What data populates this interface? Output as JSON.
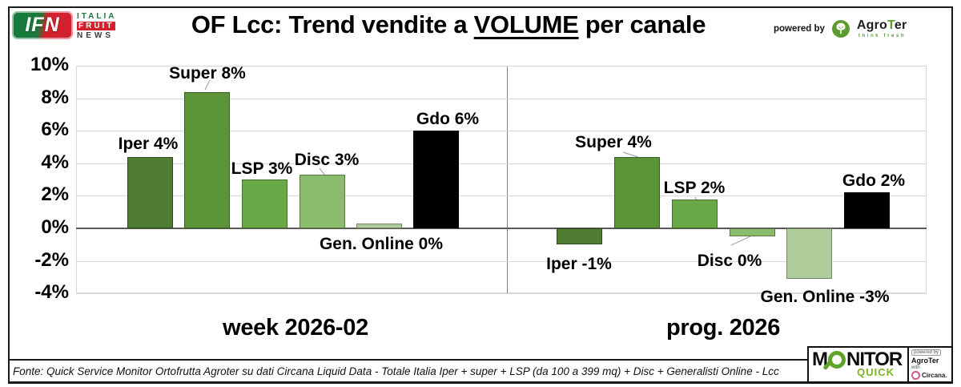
{
  "header": {
    "ifn_logo": {
      "acronym": "IFN",
      "line1": "ITALIA",
      "line2": "FRUIT",
      "line3": "NEWS"
    },
    "title": {
      "prefix": "OF Lcc: Trend vendite a ",
      "underlined": "VOLUME",
      "suffix": " per canale"
    },
    "powered_by": {
      "label": "powered by",
      "brand_part1": "Agro",
      "brand_part2": "T",
      "brand_part3": "er",
      "tagline": "think fresh"
    }
  },
  "axis": {
    "tick_labels": [
      "10%",
      "8%",
      "6%",
      "4%",
      "2%",
      "0%",
      "-2%",
      "-4%"
    ],
    "ymax": 10,
    "ymin": -4,
    "step": 2
  },
  "chart_data": [
    {
      "type": "bar",
      "group_label": "week 2026-02",
      "categories": [
        "Iper",
        "Super",
        "LSP",
        "Disc",
        "Gen. Online",
        "Gdo"
      ],
      "values": [
        4.4,
        8.4,
        3.0,
        3.3,
        0.3,
        6.0
      ],
      "bar_labels": [
        "Iper 4%",
        "Super 8%",
        "LSP 3%",
        "Disc 3%",
        "Gen. Online 0%",
        "Gdo 6%"
      ],
      "bar_colors": [
        "#4e7d33",
        "#5b9339",
        "#6aa847",
        "#8bbc6d",
        "#aecb9a",
        "#000000"
      ],
      "bar_border_colors": [
        "#2d4a1c",
        "#3a5e24",
        "#44702c",
        "#5a7444",
        "#75856a",
        "#000000"
      ],
      "ylim": [
        -4,
        10
      ],
      "grid": true,
      "legend": "none"
    },
    {
      "type": "bar",
      "group_label": "prog. 2026",
      "categories": [
        "Iper",
        "Super",
        "LSP",
        "Disc",
        "Gen. Online",
        "Gdo"
      ],
      "values": [
        -1.0,
        4.4,
        1.8,
        -0.5,
        -3.1,
        2.2
      ],
      "bar_labels": [
        "Iper -1%",
        "Super 4%",
        "LSP 2%",
        "Disc 0%",
        "Gen. Online -3%",
        "Gdo 2%"
      ],
      "bar_colors": [
        "#4e7d33",
        "#5b9339",
        "#6aa847",
        "#8bbc6d",
        "#aecb9a",
        "#000000"
      ],
      "bar_border_colors": [
        "#2d4a1c",
        "#3a5e24",
        "#44702c",
        "#5a7444",
        "#75856a",
        "#000000"
      ],
      "ylim": [
        -4,
        10
      ],
      "grid": true,
      "legend": "none"
    }
  ],
  "footer": {
    "source": "Fonte: Quick Service Monitor Ortofrutta Agroter su dati Circana Liquid Data - Totale Italia Iper + super + LSP (da 100 a 399 mq) + Disc + Generalisti Online - Lcc",
    "monitor_logo": {
      "word_start": "M",
      "word_end": "NITOR",
      "sub": "QUICK",
      "powered_by": "powered by",
      "brand1": "AgroTer",
      "with_label": "with",
      "brand2": "Circana."
    }
  },
  "colors": {
    "ifn_green": "#177b3b",
    "ifn_red": "#d1212e",
    "agroter_green": "#5d9b31",
    "monitor_green": "#5fa328",
    "quick_green": "#7ab51d",
    "circana_pink": "#cc5a8e",
    "gridline": "#d9d9d9",
    "zero_axis": "#595959",
    "panel_divider": "#7f7f7f"
  }
}
